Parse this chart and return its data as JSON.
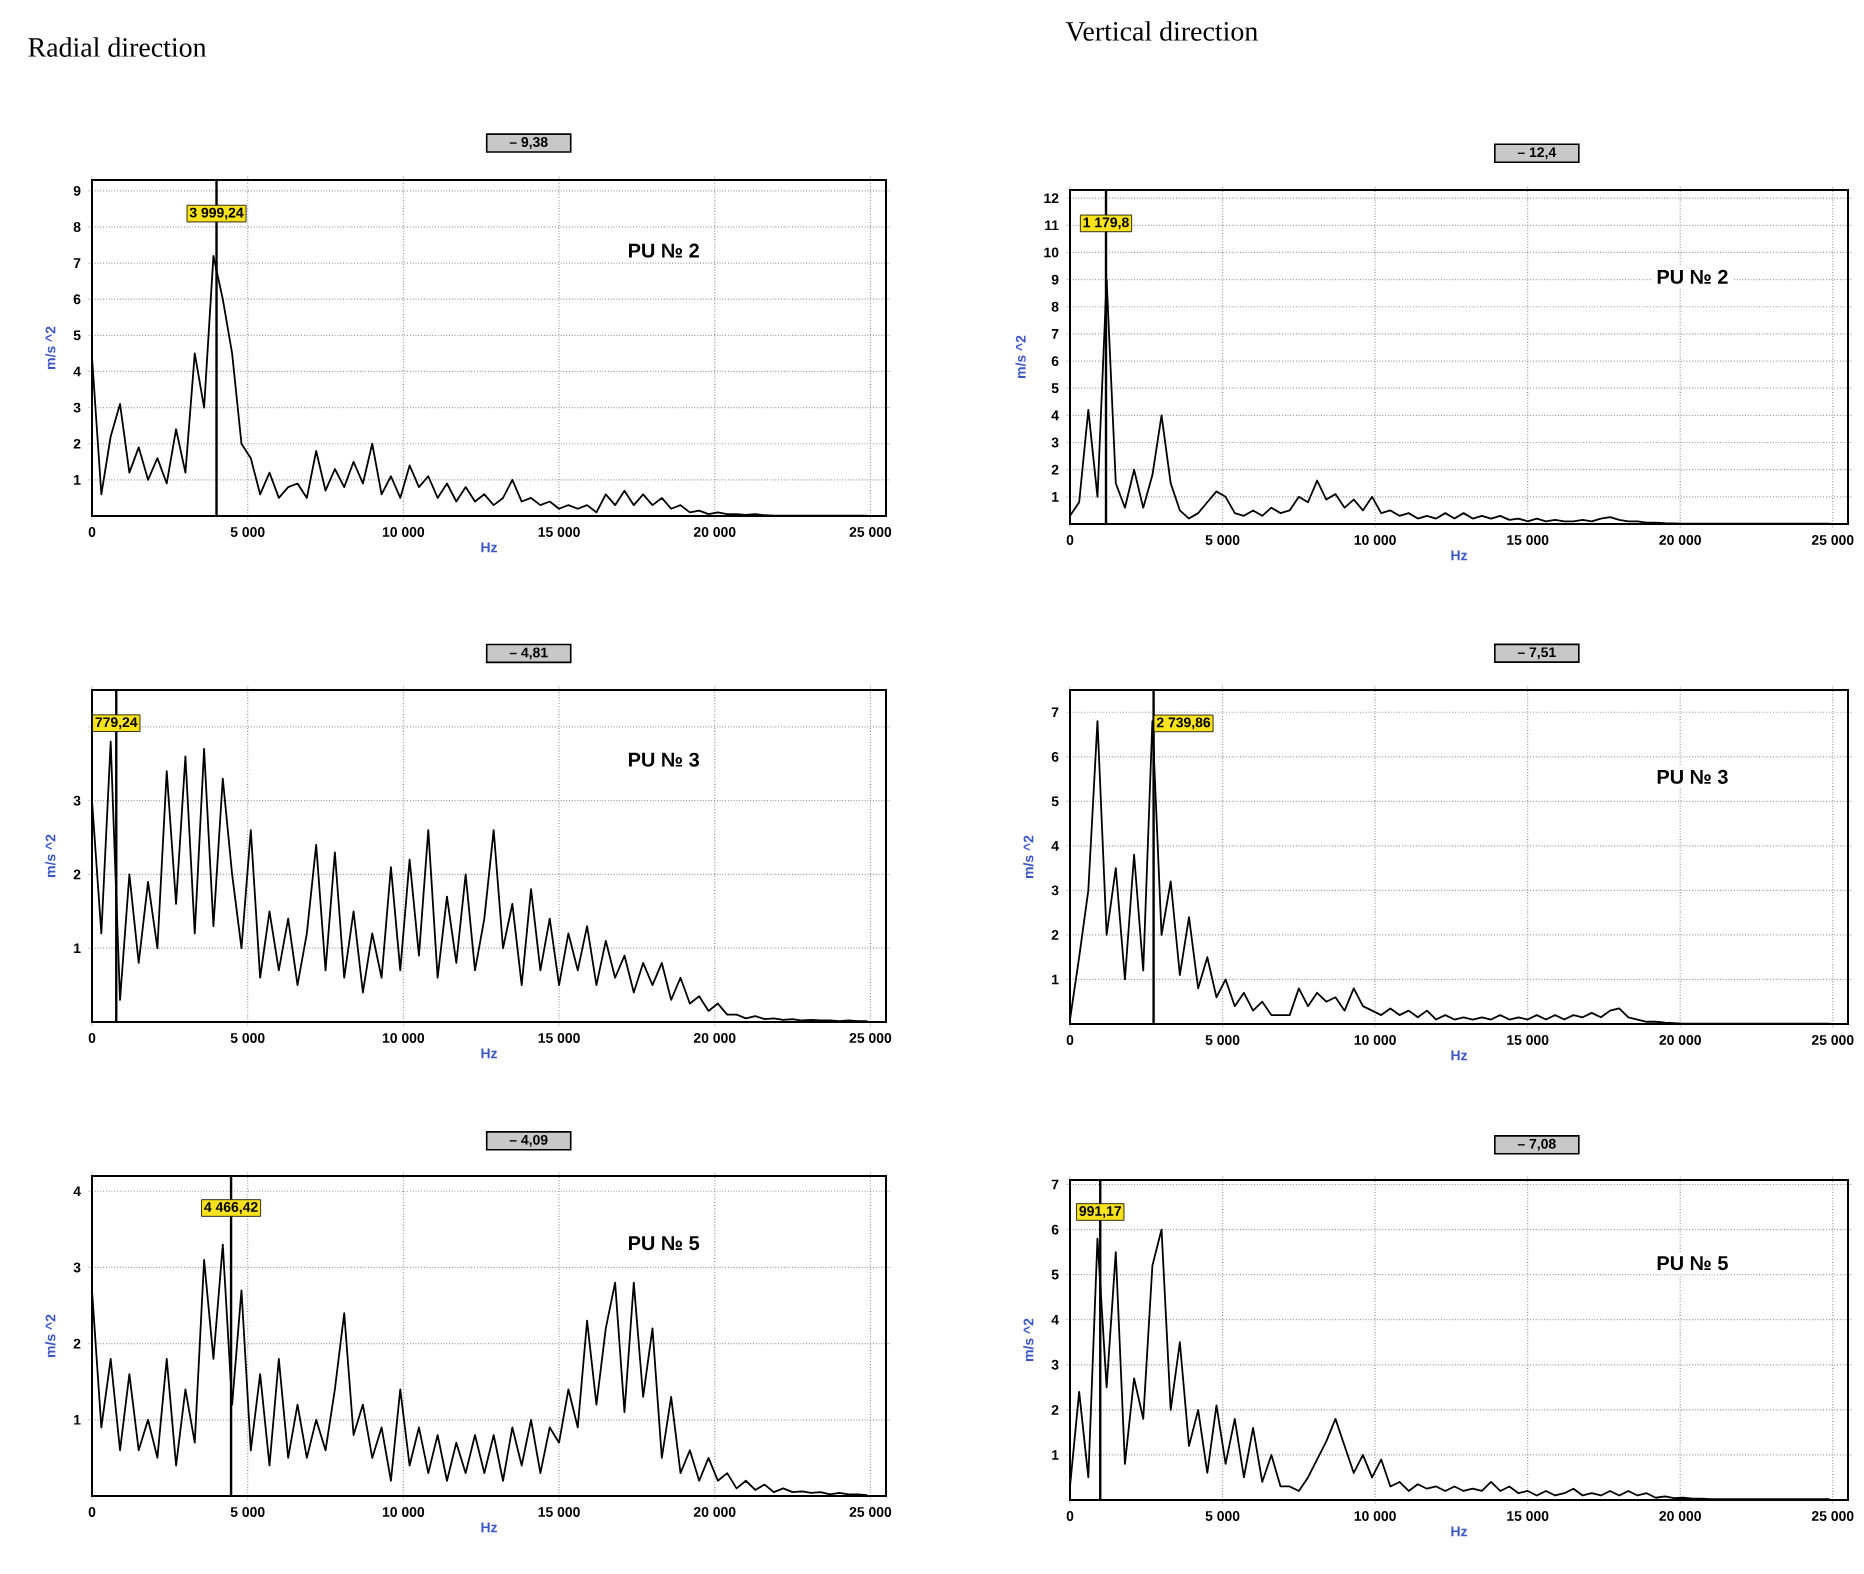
{
  "chart_data": [
    {
      "type": "line",
      "title": "Radial direction",
      "subtitle": "– 9,38",
      "xlabel": "Hz",
      "ylabel": "m/s ^2",
      "annotations": [
        "PU № 2"
      ],
      "grid": true,
      "xlim": [
        0,
        25500
      ],
      "ylim": [
        0,
        9.3
      ],
      "xticks": [
        0,
        {
          "value": 5000,
          "label": "5 000"
        },
        {
          "value": 10000,
          "label": "10 000"
        },
        {
          "value": 15000,
          "label": "15 000"
        },
        {
          "value": 20000,
          "label": "20 000"
        },
        {
          "value": 25000,
          "label": "25 000"
        }
      ],
      "yticks": [
        1,
        2,
        3,
        4,
        5,
        6,
        7,
        8,
        9
      ],
      "ref_lines": [
        {
          "axis": "x",
          "value": 3999.24,
          "label": "3 999,24"
        }
      ],
      "x": [
        0,
        300,
        600,
        900,
        1200,
        1500,
        1800,
        2100,
        2400,
        2700,
        3000,
        3300,
        3600,
        3900,
        4200,
        4500,
        4800,
        5100,
        5400,
        5700,
        6000,
        6300,
        6600,
        6900,
        7200,
        7500,
        7800,
        8100,
        8400,
        8700,
        9000,
        9300,
        9600,
        9900,
        10200,
        10500,
        10800,
        11100,
        11400,
        11700,
        12000,
        12300,
        12600,
        12900,
        13200,
        13500,
        13800,
        14100,
        14400,
        14700,
        15000,
        15300,
        15600,
        15900,
        16200,
        16500,
        16800,
        17100,
        17400,
        17700,
        18000,
        18300,
        18600,
        18900,
        19200,
        19500,
        19800,
        20100,
        20400,
        20700,
        21000,
        21300,
        21600,
        21900,
        22200,
        22500,
        22800,
        23100,
        23400,
        23700,
        24000,
        24300,
        24600,
        24900
      ],
      "series": [
        {
          "color": "#000000",
          "values": [
            4.4,
            0.6,
            2.2,
            3.1,
            1.2,
            1.9,
            1.0,
            1.6,
            0.9,
            2.4,
            1.2,
            4.5,
            3.0,
            7.2,
            6.0,
            4.5,
            2.0,
            1.6,
            0.6,
            1.2,
            0.5,
            0.8,
            0.9,
            0.5,
            1.8,
            0.7,
            1.3,
            0.8,
            1.5,
            0.9,
            2.0,
            0.6,
            1.1,
            0.5,
            1.4,
            0.8,
            1.1,
            0.5,
            0.9,
            0.4,
            0.8,
            0.4,
            0.6,
            0.3,
            0.5,
            1.0,
            0.4,
            0.5,
            0.3,
            0.4,
            0.2,
            0.3,
            0.2,
            0.3,
            0.1,
            0.6,
            0.3,
            0.7,
            0.3,
            0.6,
            0.3,
            0.5,
            0.2,
            0.3,
            0.1,
            0.15,
            0.05,
            0.1,
            0.05,
            0.05,
            0.03,
            0.05,
            0.02,
            0.01,
            0.01,
            0.01,
            0.01,
            0.01,
            0.01,
            0.01,
            0.01,
            0.01,
            0.01,
            0.01
          ]
        }
      ]
    },
    {
      "type": "line",
      "title": "Vertical direction",
      "subtitle": "– 12,4",
      "xlabel": "Hz",
      "ylabel": "m/s ^2",
      "annotations": [
        "PU № 2"
      ],
      "grid": true,
      "xlim": [
        0,
        25500
      ],
      "ylim": [
        0,
        12.3
      ],
      "xticks": [
        0,
        {
          "value": 5000,
          "label": "5 000"
        },
        {
          "value": 10000,
          "label": "10 000"
        },
        {
          "value": 15000,
          "label": "15 000"
        },
        {
          "value": 20000,
          "label": "20 000"
        },
        {
          "value": 25000,
          "label": "25 000"
        }
      ],
      "yticks": [
        1,
        2,
        3,
        4,
        5,
        6,
        7,
        8,
        9,
        10,
        11,
        12
      ],
      "ref_lines": [
        {
          "axis": "x",
          "value": 1179.8,
          "label": "1 179,8"
        }
      ],
      "x": [
        0,
        300,
        600,
        900,
        1200,
        1500,
        1800,
        2100,
        2400,
        2700,
        3000,
        3300,
        3600,
        3900,
        4200,
        4500,
        4800,
        5100,
        5400,
        5700,
        6000,
        6300,
        6600,
        6900,
        7200,
        7500,
        7800,
        8100,
        8400,
        8700,
        9000,
        9300,
        9600,
        9900,
        10200,
        10500,
        10800,
        11100,
        11400,
        11700,
        12000,
        12300,
        12600,
        12900,
        13200,
        13500,
        13800,
        14100,
        14400,
        14700,
        15000,
        15300,
        15600,
        15900,
        16200,
        16500,
        16800,
        17100,
        17400,
        17700,
        18000,
        18300,
        18600,
        18900,
        19200,
        19500,
        19800,
        20100,
        20400,
        20700,
        21000,
        21300,
        21600,
        21900,
        22200,
        22500,
        22800,
        23100,
        23400,
        23700,
        24000,
        24300,
        24600,
        24900
      ],
      "series": [
        {
          "color": "#000000",
          "values": [
            0.3,
            0.8,
            4.2,
            1.0,
            9.0,
            1.5,
            0.6,
            2.0,
            0.6,
            1.8,
            4.0,
            1.5,
            0.5,
            0.2,
            0.4,
            0.8,
            1.2,
            1.0,
            0.4,
            0.3,
            0.5,
            0.3,
            0.6,
            0.4,
            0.5,
            1.0,
            0.8,
            1.6,
            0.9,
            1.1,
            0.6,
            0.9,
            0.5,
            1.0,
            0.4,
            0.5,
            0.3,
            0.4,
            0.2,
            0.3,
            0.2,
            0.4,
            0.2,
            0.4,
            0.2,
            0.3,
            0.2,
            0.3,
            0.15,
            0.2,
            0.1,
            0.2,
            0.1,
            0.15,
            0.1,
            0.1,
            0.15,
            0.1,
            0.2,
            0.25,
            0.15,
            0.1,
            0.1,
            0.05,
            0.05,
            0.03,
            0.02,
            0.01,
            0.01,
            0.01,
            0.01,
            0.01,
            0.01,
            0.01,
            0.01,
            0.01,
            0.01,
            0.01,
            0.01,
            0.01,
            0.01,
            0.01,
            0.01,
            0.01
          ]
        }
      ]
    },
    {
      "type": "line",
      "subtitle": "– 4,81",
      "xlabel": "Hz",
      "ylabel": "m/s ^2",
      "annotations": [
        "PU № 3"
      ],
      "grid": true,
      "xlim": [
        0,
        25500
      ],
      "ylim": [
        0,
        4.5
      ],
      "xticks": [
        0,
        {
          "value": 5000,
          "label": "5 000"
        },
        {
          "value": 10000,
          "label": "10 000"
        },
        {
          "value": 15000,
          "label": "15 000"
        },
        {
          "value": 20000,
          "label": "20 000"
        },
        {
          "value": 25000,
          "label": "25 000"
        }
      ],
      "yticks": [
        1,
        2,
        3,
        {
          "value": 4,
          "label": null
        }
      ],
      "ref_lines": [
        {
          "axis": "x",
          "value": 779.24,
          "label": "779,24"
        }
      ],
      "x": [
        0,
        300,
        600,
        900,
        1200,
        1500,
        1800,
        2100,
        2400,
        2700,
        3000,
        3300,
        3600,
        3900,
        4200,
        4500,
        4800,
        5100,
        5400,
        5700,
        6000,
        6300,
        6600,
        6900,
        7200,
        7500,
        7800,
        8100,
        8400,
        8700,
        9000,
        9300,
        9600,
        9900,
        10200,
        10500,
        10800,
        11100,
        11400,
        11700,
        12000,
        12300,
        12600,
        12900,
        13200,
        13500,
        13800,
        14100,
        14400,
        14700,
        15000,
        15300,
        15600,
        15900,
        16200,
        16500,
        16800,
        17100,
        17400,
        17700,
        18000,
        18300,
        18600,
        18900,
        19200,
        19500,
        19800,
        20100,
        20400,
        20700,
        21000,
        21300,
        21600,
        21900,
        22200,
        22500,
        22800,
        23100,
        23400,
        23700,
        24000,
        24300,
        24600,
        24900
      ],
      "series": [
        {
          "color": "#000000",
          "values": [
            3.0,
            1.2,
            3.8,
            0.3,
            2.0,
            0.8,
            1.9,
            1.0,
            3.4,
            1.6,
            3.6,
            1.2,
            3.7,
            1.3,
            3.3,
            2.0,
            1.0,
            2.6,
            0.6,
            1.5,
            0.7,
            1.4,
            0.5,
            1.2,
            2.4,
            0.7,
            2.3,
            0.6,
            1.5,
            0.4,
            1.2,
            0.6,
            2.1,
            0.7,
            2.2,
            0.9,
            2.6,
            0.6,
            1.7,
            0.8,
            2.0,
            0.7,
            1.4,
            2.6,
            1.0,
            1.6,
            0.5,
            1.8,
            0.7,
            1.4,
            0.5,
            1.2,
            0.7,
            1.3,
            0.5,
            1.1,
            0.6,
            0.9,
            0.4,
            0.8,
            0.5,
            0.8,
            0.3,
            0.6,
            0.25,
            0.35,
            0.15,
            0.25,
            0.1,
            0.1,
            0.05,
            0.08,
            0.04,
            0.05,
            0.03,
            0.04,
            0.02,
            0.03,
            0.02,
            0.02,
            0.01,
            0.02,
            0.01,
            0.01
          ]
        }
      ]
    },
    {
      "type": "line",
      "subtitle": "– 7,51",
      "xlabel": "Hz",
      "ylabel": "m/s ^2",
      "annotations": [
        "PU № 3"
      ],
      "grid": true,
      "xlim": [
        0,
        25500
      ],
      "ylim": [
        0,
        7.5
      ],
      "xticks": [
        0,
        {
          "value": 5000,
          "label": "5 000"
        },
        {
          "value": 10000,
          "label": "10 000"
        },
        {
          "value": 15000,
          "label": "15 000"
        },
        {
          "value": 20000,
          "label": "20 000"
        },
        {
          "value": 25000,
          "label": "25 000"
        }
      ],
      "yticks": [
        1,
        2,
        3,
        4,
        5,
        6,
        7
      ],
      "ref_lines": [
        {
          "axis": "x",
          "value": 2739.86,
          "label": "2 739,86"
        }
      ],
      "x": [
        0,
        300,
        600,
        900,
        1200,
        1500,
        1800,
        2100,
        2400,
        2700,
        3000,
        3300,
        3600,
        3900,
        4200,
        4500,
        4800,
        5100,
        5400,
        5700,
        6000,
        6300,
        6600,
        6900,
        7200,
        7500,
        7800,
        8100,
        8400,
        8700,
        9000,
        9300,
        9600,
        9900,
        10200,
        10500,
        10800,
        11100,
        11400,
        11700,
        12000,
        12300,
        12600,
        12900,
        13200,
        13500,
        13800,
        14100,
        14400,
        14700,
        15000,
        15300,
        15600,
        15900,
        16200,
        16500,
        16800,
        17100,
        17400,
        17700,
        18000,
        18300,
        18600,
        18900,
        19200,
        19500,
        19800,
        20100,
        20400,
        20700,
        21000,
        21300,
        21600,
        21900,
        22200,
        22500,
        22800,
        23100,
        23400,
        23700,
        24000,
        24300,
        24600,
        24900
      ],
      "series": [
        {
          "color": "#000000",
          "values": [
            0.1,
            1.5,
            3.0,
            6.8,
            2.0,
            3.5,
            1.0,
            3.8,
            1.2,
            6.8,
            2.0,
            3.2,
            1.1,
            2.4,
            0.8,
            1.5,
            0.6,
            1.0,
            0.4,
            0.7,
            0.3,
            0.5,
            0.2,
            0.2,
            0.2,
            0.8,
            0.4,
            0.7,
            0.5,
            0.6,
            0.3,
            0.8,
            0.4,
            0.3,
            0.2,
            0.35,
            0.2,
            0.3,
            0.15,
            0.3,
            0.1,
            0.2,
            0.1,
            0.15,
            0.1,
            0.15,
            0.1,
            0.2,
            0.1,
            0.15,
            0.1,
            0.2,
            0.1,
            0.2,
            0.1,
            0.2,
            0.15,
            0.25,
            0.15,
            0.3,
            0.35,
            0.15,
            0.1,
            0.05,
            0.05,
            0.03,
            0.02,
            0.01,
            0.01,
            0.01,
            0.01,
            0.01,
            0.01,
            0.01,
            0.01,
            0.01,
            0.01,
            0.01,
            0.01,
            0.01,
            0.01,
            0.01,
            0.01,
            0.01
          ]
        }
      ]
    },
    {
      "type": "line",
      "subtitle": "– 4,09",
      "xlabel": "Hz",
      "ylabel": "m/s ^2",
      "annotations": [
        "PU № 5"
      ],
      "grid": true,
      "xlim": [
        0,
        25500
      ],
      "ylim": [
        0,
        4.2
      ],
      "xticks": [
        0,
        {
          "value": 5000,
          "label": "5 000"
        },
        {
          "value": 10000,
          "label": "10 000"
        },
        {
          "value": 15000,
          "label": "15 000"
        },
        {
          "value": 20000,
          "label": "20 000"
        },
        {
          "value": 25000,
          "label": "25 000"
        }
      ],
      "yticks": [
        1,
        2,
        3,
        4
      ],
      "ref_lines": [
        {
          "axis": "x",
          "value": 4466.42,
          "label": "4 466,42"
        }
      ],
      "x": [
        0,
        300,
        600,
        900,
        1200,
        1500,
        1800,
        2100,
        2400,
        2700,
        3000,
        3300,
        3600,
        3900,
        4200,
        4500,
        4800,
        5100,
        5400,
        5700,
        6000,
        6300,
        6600,
        6900,
        7200,
        7500,
        7800,
        8100,
        8400,
        8700,
        9000,
        9300,
        9600,
        9900,
        10200,
        10500,
        10800,
        11100,
        11400,
        11700,
        12000,
        12300,
        12600,
        12900,
        13200,
        13500,
        13800,
        14100,
        14400,
        14700,
        15000,
        15300,
        15600,
        15900,
        16200,
        16500,
        16800,
        17100,
        17400,
        17700,
        18000,
        18300,
        18600,
        18900,
        19200,
        19500,
        19800,
        20100,
        20400,
        20700,
        21000,
        21300,
        21600,
        21900,
        22200,
        22500,
        22800,
        23100,
        23400,
        23700,
        24000,
        24300,
        24600,
        24900
      ],
      "series": [
        {
          "color": "#000000",
          "values": [
            2.7,
            0.9,
            1.8,
            0.6,
            1.6,
            0.6,
            1.0,
            0.5,
            1.8,
            0.4,
            1.4,
            0.7,
            3.1,
            1.8,
            3.3,
            1.2,
            2.7,
            0.6,
            1.6,
            0.4,
            1.8,
            0.5,
            1.2,
            0.5,
            1.0,
            0.6,
            1.4,
            2.4,
            0.8,
            1.2,
            0.5,
            0.9,
            0.2,
            1.4,
            0.4,
            0.9,
            0.3,
            0.8,
            0.2,
            0.7,
            0.3,
            0.8,
            0.3,
            0.8,
            0.2,
            0.9,
            0.4,
            1.0,
            0.3,
            0.9,
            0.7,
            1.4,
            0.9,
            2.3,
            1.2,
            2.2,
            2.8,
            1.1,
            2.8,
            1.3,
            2.2,
            0.5,
            1.3,
            0.3,
            0.6,
            0.2,
            0.5,
            0.2,
            0.3,
            0.1,
            0.2,
            0.08,
            0.15,
            0.05,
            0.1,
            0.05,
            0.06,
            0.04,
            0.05,
            0.02,
            0.04,
            0.02,
            0.02,
            0.01
          ]
        }
      ]
    },
    {
      "type": "line",
      "subtitle": "– 7,08",
      "xlabel": "Hz",
      "ylabel": "m/s ^2",
      "annotations": [
        "PU № 5"
      ],
      "grid": true,
      "xlim": [
        0,
        25500
      ],
      "ylim": [
        0,
        7.1
      ],
      "xticks": [
        0,
        {
          "value": 5000,
          "label": "5 000"
        },
        {
          "value": 10000,
          "label": "10 000"
        },
        {
          "value": 15000,
          "label": "15 000"
        },
        {
          "value": 20000,
          "label": "20 000"
        },
        {
          "value": 25000,
          "label": "25 000"
        }
      ],
      "yticks": [
        1,
        2,
        3,
        4,
        5,
        6,
        7
      ],
      "ref_lines": [
        {
          "axis": "x",
          "value": 991.17,
          "label": "991,17"
        }
      ],
      "x": [
        0,
        300,
        600,
        900,
        1200,
        1500,
        1800,
        2100,
        2400,
        2700,
        3000,
        3300,
        3600,
        3900,
        4200,
        4500,
        4800,
        5100,
        5400,
        5700,
        6000,
        6300,
        6600,
        6900,
        7200,
        7500,
        7800,
        8100,
        8400,
        8700,
        9000,
        9300,
        9600,
        9900,
        10200,
        10500,
        10800,
        11100,
        11400,
        11700,
        12000,
        12300,
        12600,
        12900,
        13200,
        13500,
        13800,
        14100,
        14400,
        14700,
        15000,
        15300,
        15600,
        15900,
        16200,
        16500,
        16800,
        17100,
        17400,
        17700,
        18000,
        18300,
        18600,
        18900,
        19200,
        19500,
        19800,
        20100,
        20400,
        20700,
        21000,
        21300,
        21600,
        21900,
        22200,
        22500,
        22800,
        23100,
        23400,
        23700,
        24000,
        24300,
        24600,
        24900
      ],
      "series": [
        {
          "color": "#000000",
          "values": [
            0.3,
            2.4,
            0.5,
            5.8,
            2.5,
            5.5,
            0.8,
            2.7,
            1.8,
            5.2,
            6.0,
            2.0,
            3.5,
            1.2,
            2.0,
            0.6,
            2.1,
            0.8,
            1.8,
            0.5,
            1.6,
            0.4,
            1.0,
            0.3,
            0.3,
            0.2,
            0.5,
            0.9,
            1.3,
            1.8,
            1.2,
            0.6,
            1.0,
            0.5,
            0.9,
            0.3,
            0.4,
            0.2,
            0.35,
            0.25,
            0.3,
            0.2,
            0.3,
            0.2,
            0.25,
            0.2,
            0.4,
            0.2,
            0.3,
            0.15,
            0.2,
            0.1,
            0.2,
            0.1,
            0.15,
            0.25,
            0.1,
            0.15,
            0.1,
            0.2,
            0.1,
            0.2,
            0.1,
            0.15,
            0.05,
            0.08,
            0.04,
            0.05,
            0.03,
            0.03,
            0.02,
            0.02,
            0.02,
            0.02,
            0.02,
            0.02,
            0.02,
            0.02,
            0.02,
            0.02,
            0.02,
            0.02,
            0.02,
            0.02
          ]
        }
      ]
    }
  ]
}
